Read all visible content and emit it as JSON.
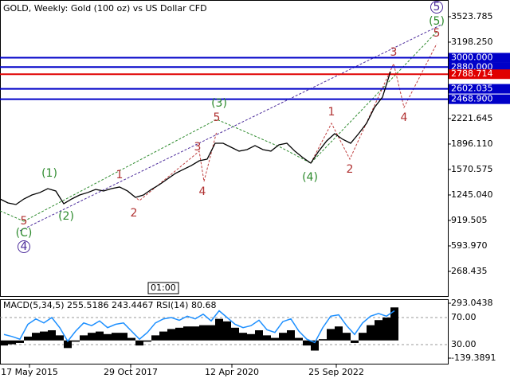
{
  "chart_data": [
    {
      "type": "line",
      "title": "GOLD, Weekly:  Gold (100 oz) vs US Dollar CFD",
      "color": "#000000",
      "values": [
        1194,
        1143,
        1123,
        1194,
        1245,
        1276,
        1326,
        1296,
        1133,
        1194,
        1245,
        1276,
        1316,
        1296,
        1326,
        1347,
        1296,
        1214,
        1245,
        1316,
        1377,
        1448,
        1520,
        1571,
        1621,
        1682,
        1703,
        1906,
        1906,
        1855,
        1805,
        1825,
        1876,
        1825,
        1805,
        1886,
        1906,
        1805,
        1723,
        1652,
        1805,
        1937,
        2028,
        1957,
        1906,
        2028,
        2161,
        2364,
        2496,
        2822
      ],
      "xlim": [
        0,
        56.2
      ],
      "xticks": [
        {
          "value": 3.7,
          "label": "17 May 2015"
        },
        {
          "value": 16.4,
          "label": "29 Oct 2017"
        },
        {
          "value": 29.1,
          "label": "12 Apr 2020"
        },
        {
          "value": 42.2,
          "label": "25 Sep 2022"
        }
      ],
      "ylim": [
        -47,
        3737
      ],
      "yticks": [
        {
          "value": 3523.785,
          "label": "3523.785"
        },
        {
          "value": 3198.25,
          "label": "3198.250"
        },
        {
          "value": 2221.645,
          "label": "2221.645"
        },
        {
          "value": 1896.11,
          "label": "1896.110"
        },
        {
          "value": 1570.575,
          "label": "1570.575"
        },
        {
          "value": 1245.04,
          "label": "1245.040"
        },
        {
          "value": 919.505,
          "label": "919.505"
        },
        {
          "value": 593.97,
          "label": "593.970"
        },
        {
          "value": 268.435,
          "label": "268.435"
        }
      ],
      "levels": [
        {
          "value": 3000,
          "label": "3000.000",
          "color": "#0000c8"
        },
        {
          "value": 2880,
          "label": "2880.000",
          "color": "#0000c8"
        },
        {
          "value": 2788.714,
          "label": "2788.714",
          "color": "#e00000"
        },
        {
          "value": 2602.035,
          "label": "2602.035",
          "color": "#0000c8"
        },
        {
          "value": 2468.9,
          "label": "2468.900",
          "color": "#0000c8"
        }
      ],
      "time_label": "01:00",
      "annotations": [
        {
          "text": "5",
          "color": "#b03030"
        },
        {
          "text": "(C)",
          "color": "#2e8b2e"
        },
        {
          "text": "4",
          "color": "#4b2b9b",
          "circled": true
        },
        {
          "text": "(1)",
          "color": "#2e8b2e"
        },
        {
          "text": "(2)",
          "color": "#2e8b2e"
        },
        {
          "text": "1",
          "color": "#b03030"
        },
        {
          "text": "2",
          "color": "#b03030"
        },
        {
          "text": "3",
          "color": "#b03030"
        },
        {
          "text": "4",
          "color": "#b03030"
        },
        {
          "text": "5",
          "color": "#b03030"
        },
        {
          "text": "(3)",
          "color": "#2e8b2e"
        },
        {
          "text": "(4)",
          "color": "#2e8b2e"
        },
        {
          "text": "1",
          "color": "#b03030"
        },
        {
          "text": "2",
          "color": "#b03030"
        },
        {
          "text": "3",
          "color": "#b03030"
        },
        {
          "text": "4",
          "color": "#b03030"
        },
        {
          "text": "5",
          "color": "#b03030"
        },
        {
          "text": "(5)",
          "color": "#2e8b2e"
        },
        {
          "text": "5",
          "color": "#4b2b9b",
          "circled": true
        }
      ]
    },
    {
      "type": "indicator",
      "title": "MACD(5,34,5) 255.5186 243.4467 RSI(14) 80.68",
      "histogram": [
        -40,
        -30,
        -20,
        30,
        60,
        70,
        80,
        40,
        -60,
        -10,
        40,
        60,
        70,
        50,
        60,
        60,
        20,
        -40,
        -10,
        40,
        70,
        90,
        100,
        110,
        110,
        120,
        120,
        170,
        150,
        100,
        60,
        50,
        80,
        40,
        20,
        60,
        80,
        20,
        -40,
        -80,
        10,
        90,
        110,
        60,
        -20,
        60,
        120,
        160,
        180,
        260
      ],
      "histogram_color": "#000000",
      "rsi": [
        45,
        42,
        38,
        60,
        68,
        62,
        70,
        55,
        35,
        50,
        62,
        58,
        65,
        55,
        60,
        62,
        50,
        38,
        48,
        62,
        68,
        70,
        66,
        72,
        68,
        75,
        65,
        80,
        70,
        60,
        55,
        58,
        66,
        52,
        48,
        64,
        68,
        50,
        38,
        33,
        55,
        72,
        74,
        58,
        45,
        62,
        72,
        76,
        72,
        80
      ],
      "rsi_color": "#1e90ff",
      "ylim": [
        -183.3,
        324.4
      ],
      "yticks": [
        293.0438,
        -139.3891
      ],
      "y2lim": [
        1.76,
        97.06
      ],
      "y2ticks": [
        {
          "value": 70,
          "label": "70.00"
        },
        {
          "value": 30,
          "label": "30.00"
        }
      ]
    }
  ]
}
